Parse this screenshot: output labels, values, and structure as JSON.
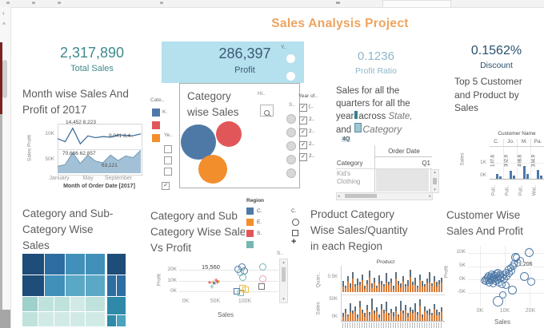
{
  "ui": {
    "title": "Sales Analysis Project",
    "nav": {
      "back": "‹",
      "up": "^"
    },
    "kpi": {
      "total": {
        "value": "2,317,890",
        "label": "Total Sales"
      },
      "profit": {
        "value": "286,397",
        "label": "Profit",
        "side": "Y.."
      },
      "ratio": {
        "value": "0.1236",
        "label": "Profit Ratio"
      },
      "discount": {
        "value": "0.1562%",
        "label": "Discount"
      }
    },
    "bubble_card": {
      "hint": "Hi..",
      "s_label": "S.."
    },
    "year_filter": {
      "title": "Year of..",
      "items": [
        "(..",
        "2..",
        "2..",
        "2..",
        "2.."
      ],
      "checked": [
        true,
        true,
        true,
        true,
        true
      ]
    },
    "ye_legend": {
      "title": "Ye..",
      "checks": [
        false,
        false,
        false,
        true
      ]
    },
    "qtext": {
      "l1": "Sales for all the",
      "l2": "quarters for all the",
      "l3a": "year",
      "l3b": "across ",
      "l3i": "State,",
      "l4a": "and ",
      "l4i": "Category",
      "note": "4Q"
    },
    "order_table": {
      "header": "Order Date",
      "row_header": "Category",
      "col": "Q1",
      "cell1": "Kid's",
      "cell2": "Clothing"
    },
    "scroll": {
      "up": "▴",
      "down": "▾",
      "left": "◂",
      "right": "▸"
    }
  },
  "colors": {
    "accent_orange": "#eda45f",
    "kpi_teal": "#3e8a8c",
    "profit_box_bg": "#b5e0ee",
    "profit_text": "#3a5a74",
    "ratio_text": "#8fb6c9",
    "discount_text": "#29516e",
    "tab_blue": "#4e79a7",
    "tab_red": "#e15759",
    "tab_orange": "#f28e2b",
    "tab_teal": "#76b7b2"
  },
  "chart_data": [
    {
      "type": "line",
      "title_lines": [
        "Month wise Sales And",
        "Profit of 2017"
      ],
      "y_axis_label": "Sales Profit",
      "row_ticks": [
        "10K",
        "50K"
      ],
      "annotations": [
        "14,452 8,223",
        "9,041 8,4..",
        "70,686 62,857",
        "63,121"
      ],
      "x_ticks": [
        "January",
        "May",
        "September"
      ],
      "caption": "Month of Order Date [2017]",
      "series": [
        {
          "name": "Profit",
          "unit": "K",
          "values": [
            6,
            3.5,
            14.4,
            1.8,
            8.2,
            6.8,
            7.6,
            7.2,
            9.0,
            8.6,
            8.4,
            9.8
          ]
        },
        {
          "name": "Sales",
          "unit": "K",
          "values": [
            24,
            30,
            70.7,
            34,
            62.9,
            42,
            36,
            63.1,
            44,
            60,
            54,
            80
          ]
        }
      ]
    },
    {
      "type": "packed_bubbles",
      "title_lines": [
        "Category",
        "wise Sales"
      ],
      "legend_title": "Cate..",
      "legend_first_label": "K.",
      "bubbles": [
        {
          "label": "K.",
          "color": "#4e79a7",
          "d": 44,
          "x": 1,
          "y": 51
        },
        {
          "label": "",
          "color": "#e15759",
          "d": 32,
          "x": 45,
          "y": 47
        },
        {
          "label": "",
          "color": "#f28e2b",
          "d": 36,
          "x": 23,
          "y": 89
        }
      ]
    },
    {
      "type": "bar",
      "title_lines": [
        "Top 5 Customer",
        "and Product by",
        "Sales"
      ],
      "header": "Customer Name",
      "columns": [
        "C.",
        "Jo.",
        "M.",
        "Pa."
      ],
      "y_label": "Sales",
      "y_ticks": [
        "1K",
        "0K"
      ],
      "value_labels": [
        "187.6",
        "302.9",
        "498.8",
        "334.9"
      ],
      "groups": [
        [
          3,
          1.5
        ],
        [
          5,
          2
        ],
        [
          8,
          3
        ],
        [
          5.5,
          2
        ]
      ],
      "x_labels": [
        "Pull..",
        "Pull..",
        "Pull..",
        "Wal.."
      ]
    },
    {
      "type": "treemap",
      "title_lines": [
        "Category and Sub-",
        "Category Wise",
        "Sales"
      ],
      "cells": [
        [
          0,
          0,
          27,
          26,
          "#1d4d78"
        ],
        [
          28,
          0,
          25,
          26,
          "#2e6da1"
        ],
        [
          54,
          0,
          24,
          26,
          "#4090ba"
        ],
        [
          79,
          0,
          24,
          26,
          "#4090ba"
        ],
        [
          106,
          0,
          23,
          26,
          "#1d4d78"
        ],
        [
          0,
          27,
          27,
          26,
          "#1d4d78"
        ],
        [
          28,
          27,
          25,
          26,
          "#4090ba"
        ],
        [
          54,
          27,
          24,
          26,
          "#5aa7c6"
        ],
        [
          79,
          27,
          24,
          26,
          "#5aa7c6"
        ],
        [
          106,
          27,
          11,
          26,
          "#2e6da1"
        ],
        [
          118,
          27,
          11,
          26,
          "#2e6da1"
        ],
        [
          0,
          54,
          19,
          18,
          "#9ed1cb"
        ],
        [
          20,
          54,
          19,
          18,
          "#bfe2dd"
        ],
        [
          40,
          54,
          19,
          18,
          "#bfe2dd"
        ],
        [
          60,
          54,
          18,
          18,
          "#d2eae6"
        ],
        [
          79,
          54,
          24,
          18,
          "#bfe2dd"
        ],
        [
          0,
          73,
          19,
          18,
          "#bfe2dd"
        ],
        [
          20,
          73,
          19,
          18,
          "#d2eae6"
        ],
        [
          40,
          73,
          19,
          18,
          "#d2eae6"
        ],
        [
          60,
          73,
          18,
          18,
          "#d2eae6"
        ],
        [
          79,
          73,
          24,
          18,
          "#d2eae6"
        ],
        [
          106,
          54,
          23,
          22,
          "#2f8aa9"
        ],
        [
          106,
          77,
          11,
          14,
          "#2f8aa9"
        ],
        [
          118,
          77,
          11,
          14,
          "#4ba3bf"
        ]
      ]
    },
    {
      "type": "scatter",
      "title_lines": [
        "Category and Sub",
        "Category Wise Sales",
        "Vs Profit"
      ],
      "legend_title": "Region",
      "legend": [
        {
          "label": "C.",
          "color": "#4e79a7"
        },
        {
          "label": "E.",
          "color": "#f28e2b"
        },
        {
          "label": "S.",
          "color": "#e15759"
        },
        {
          "label": "",
          "color": "#76b7b2"
        }
      ],
      "y_label": "Profit",
      "x_label": "Sales",
      "y_ticks": [
        "20K",
        "10K",
        "0K"
      ],
      "x_ticks": [
        "0K",
        "50K",
        "100K"
      ],
      "annotation": "15,560",
      "points": [
        {
          "x": 42,
          "y": 6,
          "m": "asterisk",
          "c": "#e15759"
        },
        {
          "x": 47,
          "y": 7.5,
          "m": "plus",
          "c": "#f28e2b"
        },
        {
          "x": 50,
          "y": 5,
          "m": "asterisk",
          "c": "#4e79a7"
        },
        {
          "x": 54,
          "y": 8,
          "m": "plus",
          "c": "#555555"
        },
        {
          "x": 45,
          "y": 4,
          "m": "plus",
          "c": "#76b7b2"
        },
        {
          "x": 57,
          "y": 6.5,
          "m": "asterisk",
          "c": "#f28e2b"
        },
        {
          "x": 52,
          "y": 9.5,
          "m": "plus",
          "c": "#e15759"
        },
        {
          "x": 88,
          "y": 21,
          "m": "circle",
          "c": "#4e79a7"
        },
        {
          "x": 95,
          "y": 23,
          "m": "circle",
          "c": "#4e79a7"
        },
        {
          "x": 92,
          "y": 17.5,
          "m": "circle",
          "c": "#76b7b2"
        },
        {
          "x": 99,
          "y": 19,
          "m": "circle",
          "c": "#4e79a7"
        },
        {
          "x": 96,
          "y": 13.5,
          "m": "circle",
          "c": "#76b7b2"
        },
        {
          "x": 130,
          "y": 23,
          "m": "circle",
          "c": "#76b7b2"
        },
        {
          "x": 130,
          "y": 12,
          "m": "circle",
          "c": "#e8a0b4"
        },
        {
          "x": 95,
          "y": 3.5,
          "m": "square",
          "c": "#e8b54d"
        },
        {
          "x": 86,
          "y": 0.5,
          "m": "square",
          "c": "#4e79a7"
        },
        {
          "x": 93,
          "y": -1,
          "m": "square",
          "c": "#76b7b2"
        },
        {
          "x": 101,
          "y": 1.5,
          "m": "square",
          "c": "#f2c14e"
        },
        {
          "x": 128,
          "y": 4.5,
          "m": "square",
          "c": "#777777"
        }
      ]
    },
    {
      "type": "bar",
      "title_lines": [
        "Product Category",
        "Wise Sales/Quantity",
        "in each Region"
      ],
      "shape_legend_title": "C.",
      "header": "Product",
      "bar_colors": [
        "#d97a33",
        "#5b6f7f"
      ],
      "rows": [
        {
          "label": "Quan..",
          "ticks": [
            "0.5K"
          ],
          "heights": [
            0.5,
            0.3,
            0.7,
            0.4,
            0.9,
            0.35,
            0.6,
            0.45,
            0.8,
            0.3,
            0.55,
            0.95,
            0.4,
            0.65,
            0.3,
            0.75,
            0.5,
            0.35,
            0.85,
            0.45,
            0.6,
            0.3,
            0.9,
            0.5,
            0.4,
            0.7,
            0.35,
            0.55,
            1.0,
            0.45,
            0.65,
            0.3,
            0.8,
            0.5,
            0.35,
            0.6,
            0.9,
            0.4,
            0.7,
            0.45,
            0.55,
            0.65
          ]
        },
        {
          "label": "Sales",
          "ticks": [
            "50K",
            "0K"
          ],
          "heights": [
            0.35,
            0.55,
            0.3,
            0.8,
            0.45,
            0.65,
            0.3,
            0.9,
            0.5,
            0.35,
            0.7,
            0.4,
            1.0,
            0.45,
            0.6,
            0.3,
            0.75,
            0.5,
            0.85,
            0.35,
            0.55,
            0.4,
            0.65,
            0.3,
            0.9,
            0.45,
            0.7,
            0.35,
            0.6,
            0.5,
            0.8,
            0.4,
            0.95,
            0.3,
            0.65,
            0.45,
            0.55,
            0.35,
            0.75,
            0.5,
            0.4,
            0.6
          ]
        }
      ]
    },
    {
      "type": "scatter",
      "title_lines": [
        "Customer Wise",
        "Sales And Profit"
      ],
      "y_label": "Profit",
      "x_label": "Sales",
      "y_ticks": [
        "10K",
        "5K",
        "0K",
        "-5K"
      ],
      "x_ticks": [
        "0K",
        "10K",
        "20K"
      ],
      "annotation": "1,206",
      "point_color": "#4e79a7",
      "points": [
        [
          1.5,
          0
        ],
        [
          2,
          0.6
        ],
        [
          2.2,
          -0.5
        ],
        [
          2.6,
          1.2
        ],
        [
          3,
          0
        ],
        [
          3,
          1.8
        ],
        [
          3.3,
          -1
        ],
        [
          3.6,
          0.7
        ],
        [
          4,
          1.5
        ],
        [
          4,
          -0.3
        ],
        [
          4.3,
          2.2
        ],
        [
          4.6,
          0.3
        ],
        [
          5,
          1
        ],
        [
          5,
          -1.3
        ],
        [
          5.3,
          2
        ],
        [
          5.6,
          0.6
        ],
        [
          6,
          1.6
        ],
        [
          6,
          -0.6
        ],
        [
          6.3,
          2.5
        ],
        [
          6.6,
          0.2
        ],
        [
          7,
          1.2
        ],
        [
          7,
          2.9
        ],
        [
          7.3,
          -1
        ],
        [
          7.6,
          1.8
        ],
        [
          8,
          0.5
        ],
        [
          8,
          2.4
        ],
        [
          8.4,
          -1.6
        ],
        [
          8.8,
          1
        ],
        [
          9.2,
          2.1
        ],
        [
          9.6,
          0.4
        ],
        [
          10,
          3
        ],
        [
          10,
          -2
        ],
        [
          10.5,
          1.5
        ],
        [
          11,
          4
        ],
        [
          11.5,
          2.6
        ],
        [
          12,
          4.6
        ],
        [
          12.5,
          3.4
        ],
        [
          13,
          5.4
        ],
        [
          13.5,
          6.2
        ],
        [
          14,
          8.5,
          9
        ],
        [
          14.5,
          8.6
        ],
        [
          15,
          6.6
        ],
        [
          16,
          7.4
        ],
        [
          17.7,
          1.5,
          9
        ],
        [
          19.4,
          10.6,
          9
        ],
        [
          20.3,
          -0.6,
          8
        ],
        [
          6.8,
          -7.9,
          11
        ],
        [
          12.9,
          -3.9,
          9
        ],
        [
          9,
          -5.5
        ]
      ]
    }
  ]
}
